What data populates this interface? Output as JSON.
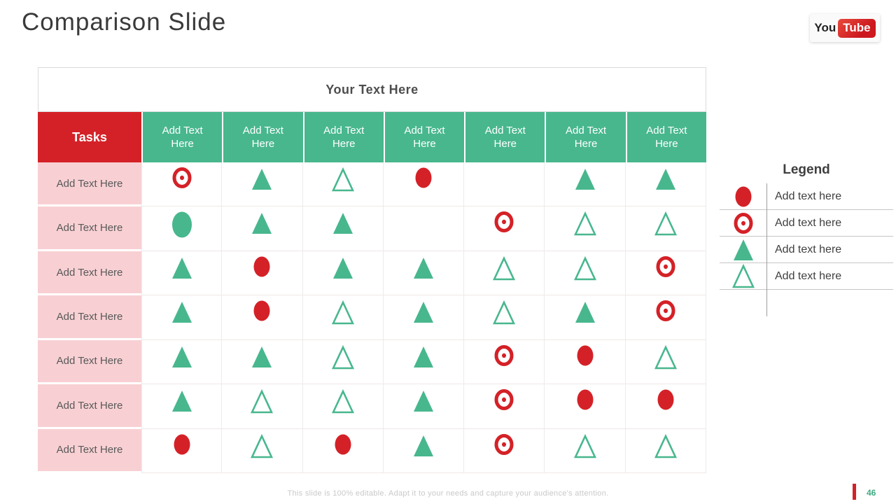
{
  "slide": {
    "title": "Comparison Slide",
    "footer": "This slide is 100% editable. Adapt it to your needs and capture your audience's attention.",
    "page_number": "46"
  },
  "logo": {
    "you": "You",
    "tube": "Tube"
  },
  "colors": {
    "red": "#D42127",
    "green": "#48B78E",
    "pink": "#F8D0D3",
    "youtube_red": "#CC181E",
    "page_number_green": "#3FA983"
  },
  "table": {
    "caption": "Your Text Here",
    "tasks_header": "Tasks",
    "column_headers": [
      "Add Text Here",
      "Add Text Here",
      "Add Text Here",
      "Add Text Here",
      "Add Text Here",
      "Add Text Here",
      "Add Text Here"
    ],
    "rows": [
      {
        "label": "Add Text Here",
        "cells": [
          "red-target",
          "green-triangle-filled",
          "green-triangle-outline",
          "red-circle",
          "",
          "green-triangle-filled",
          "green-triangle-filled"
        ]
      },
      {
        "label": "Add Text Here",
        "cells": [
          "green-circle",
          "green-triangle-filled",
          "green-triangle-filled",
          "",
          "red-target",
          "green-triangle-outline",
          "green-triangle-outline"
        ]
      },
      {
        "label": "Add Text Here",
        "cells": [
          "green-triangle-filled",
          "red-circle",
          "green-triangle-filled",
          "green-triangle-filled",
          "green-triangle-outline",
          "green-triangle-outline",
          "red-target"
        ]
      },
      {
        "label": "Add Text Here",
        "cells": [
          "green-triangle-filled",
          "red-circle",
          "green-triangle-outline",
          "green-triangle-filled",
          "green-triangle-outline",
          "green-triangle-filled",
          "red-target"
        ]
      },
      {
        "label": "Add Text Here",
        "cells": [
          "green-triangle-filled",
          "green-triangle-filled",
          "green-triangle-outline",
          "green-triangle-filled",
          "red-target",
          "red-circle",
          "green-triangle-outline"
        ]
      },
      {
        "label": "Add Text Here",
        "cells": [
          "green-triangle-filled",
          "green-triangle-outline",
          "green-triangle-outline",
          "green-triangle-filled",
          "red-target",
          "red-circle",
          "red-circle"
        ]
      },
      {
        "label": "Add Text Here",
        "cells": [
          "red-circle",
          "green-triangle-outline",
          "red-circle",
          "green-triangle-filled",
          "red-target",
          "green-triangle-outline",
          "green-triangle-outline"
        ]
      }
    ]
  },
  "legend": {
    "title": "Legend",
    "items": [
      {
        "symbol": "red-circle",
        "label": "Add text here"
      },
      {
        "symbol": "red-target",
        "label": "Add text here"
      },
      {
        "symbol": "green-triangle-filled",
        "label": "Add text here"
      },
      {
        "symbol": "green-triangle-outline",
        "label": "Add text here"
      }
    ]
  }
}
